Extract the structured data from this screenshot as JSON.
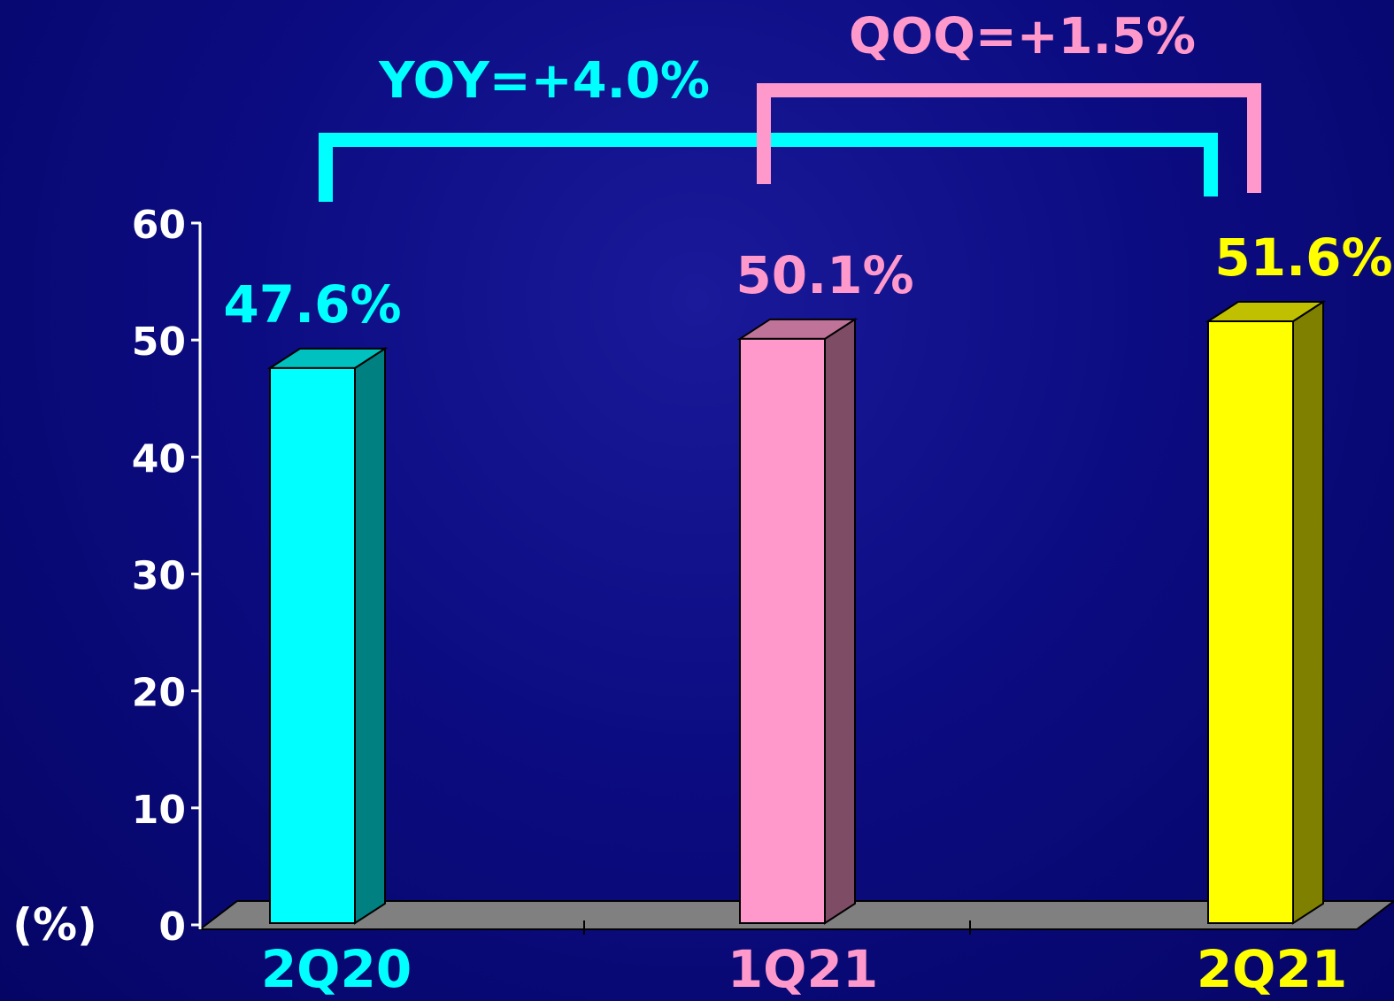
{
  "chart_data": {
    "type": "bar",
    "categories": [
      "2Q20",
      "1Q21",
      "2Q21"
    ],
    "values": [
      47.6,
      50.1,
      51.6
    ],
    "data_labels": [
      "47.6%",
      "50.1%",
      "51.6%"
    ],
    "ylabel": "(%)",
    "ylim": [
      0,
      60
    ],
    "yticks": [
      "0",
      "10",
      "20",
      "30",
      "40",
      "50",
      "60"
    ],
    "grid": false,
    "three_d": true,
    "colors": {
      "bars": [
        "#00FFFF",
        "#FF99CC",
        "#FFFF00"
      ],
      "bars_side": [
        "#008080",
        "#7F4C66",
        "#808000"
      ],
      "bars_top": [
        "#00C0C0",
        "#C07399",
        "#C0C000"
      ],
      "floor": "#808080",
      "axis": "#FFFFFF",
      "yoy": "#00FFFF",
      "qoq": "#FF99CC"
    },
    "annotations": [
      {
        "text": "YOY=+4.0%",
        "from": "2Q20",
        "to": "2Q21"
      },
      {
        "text": "QOQ=+1.5%",
        "from": "1Q21",
        "to": "2Q21"
      }
    ]
  }
}
